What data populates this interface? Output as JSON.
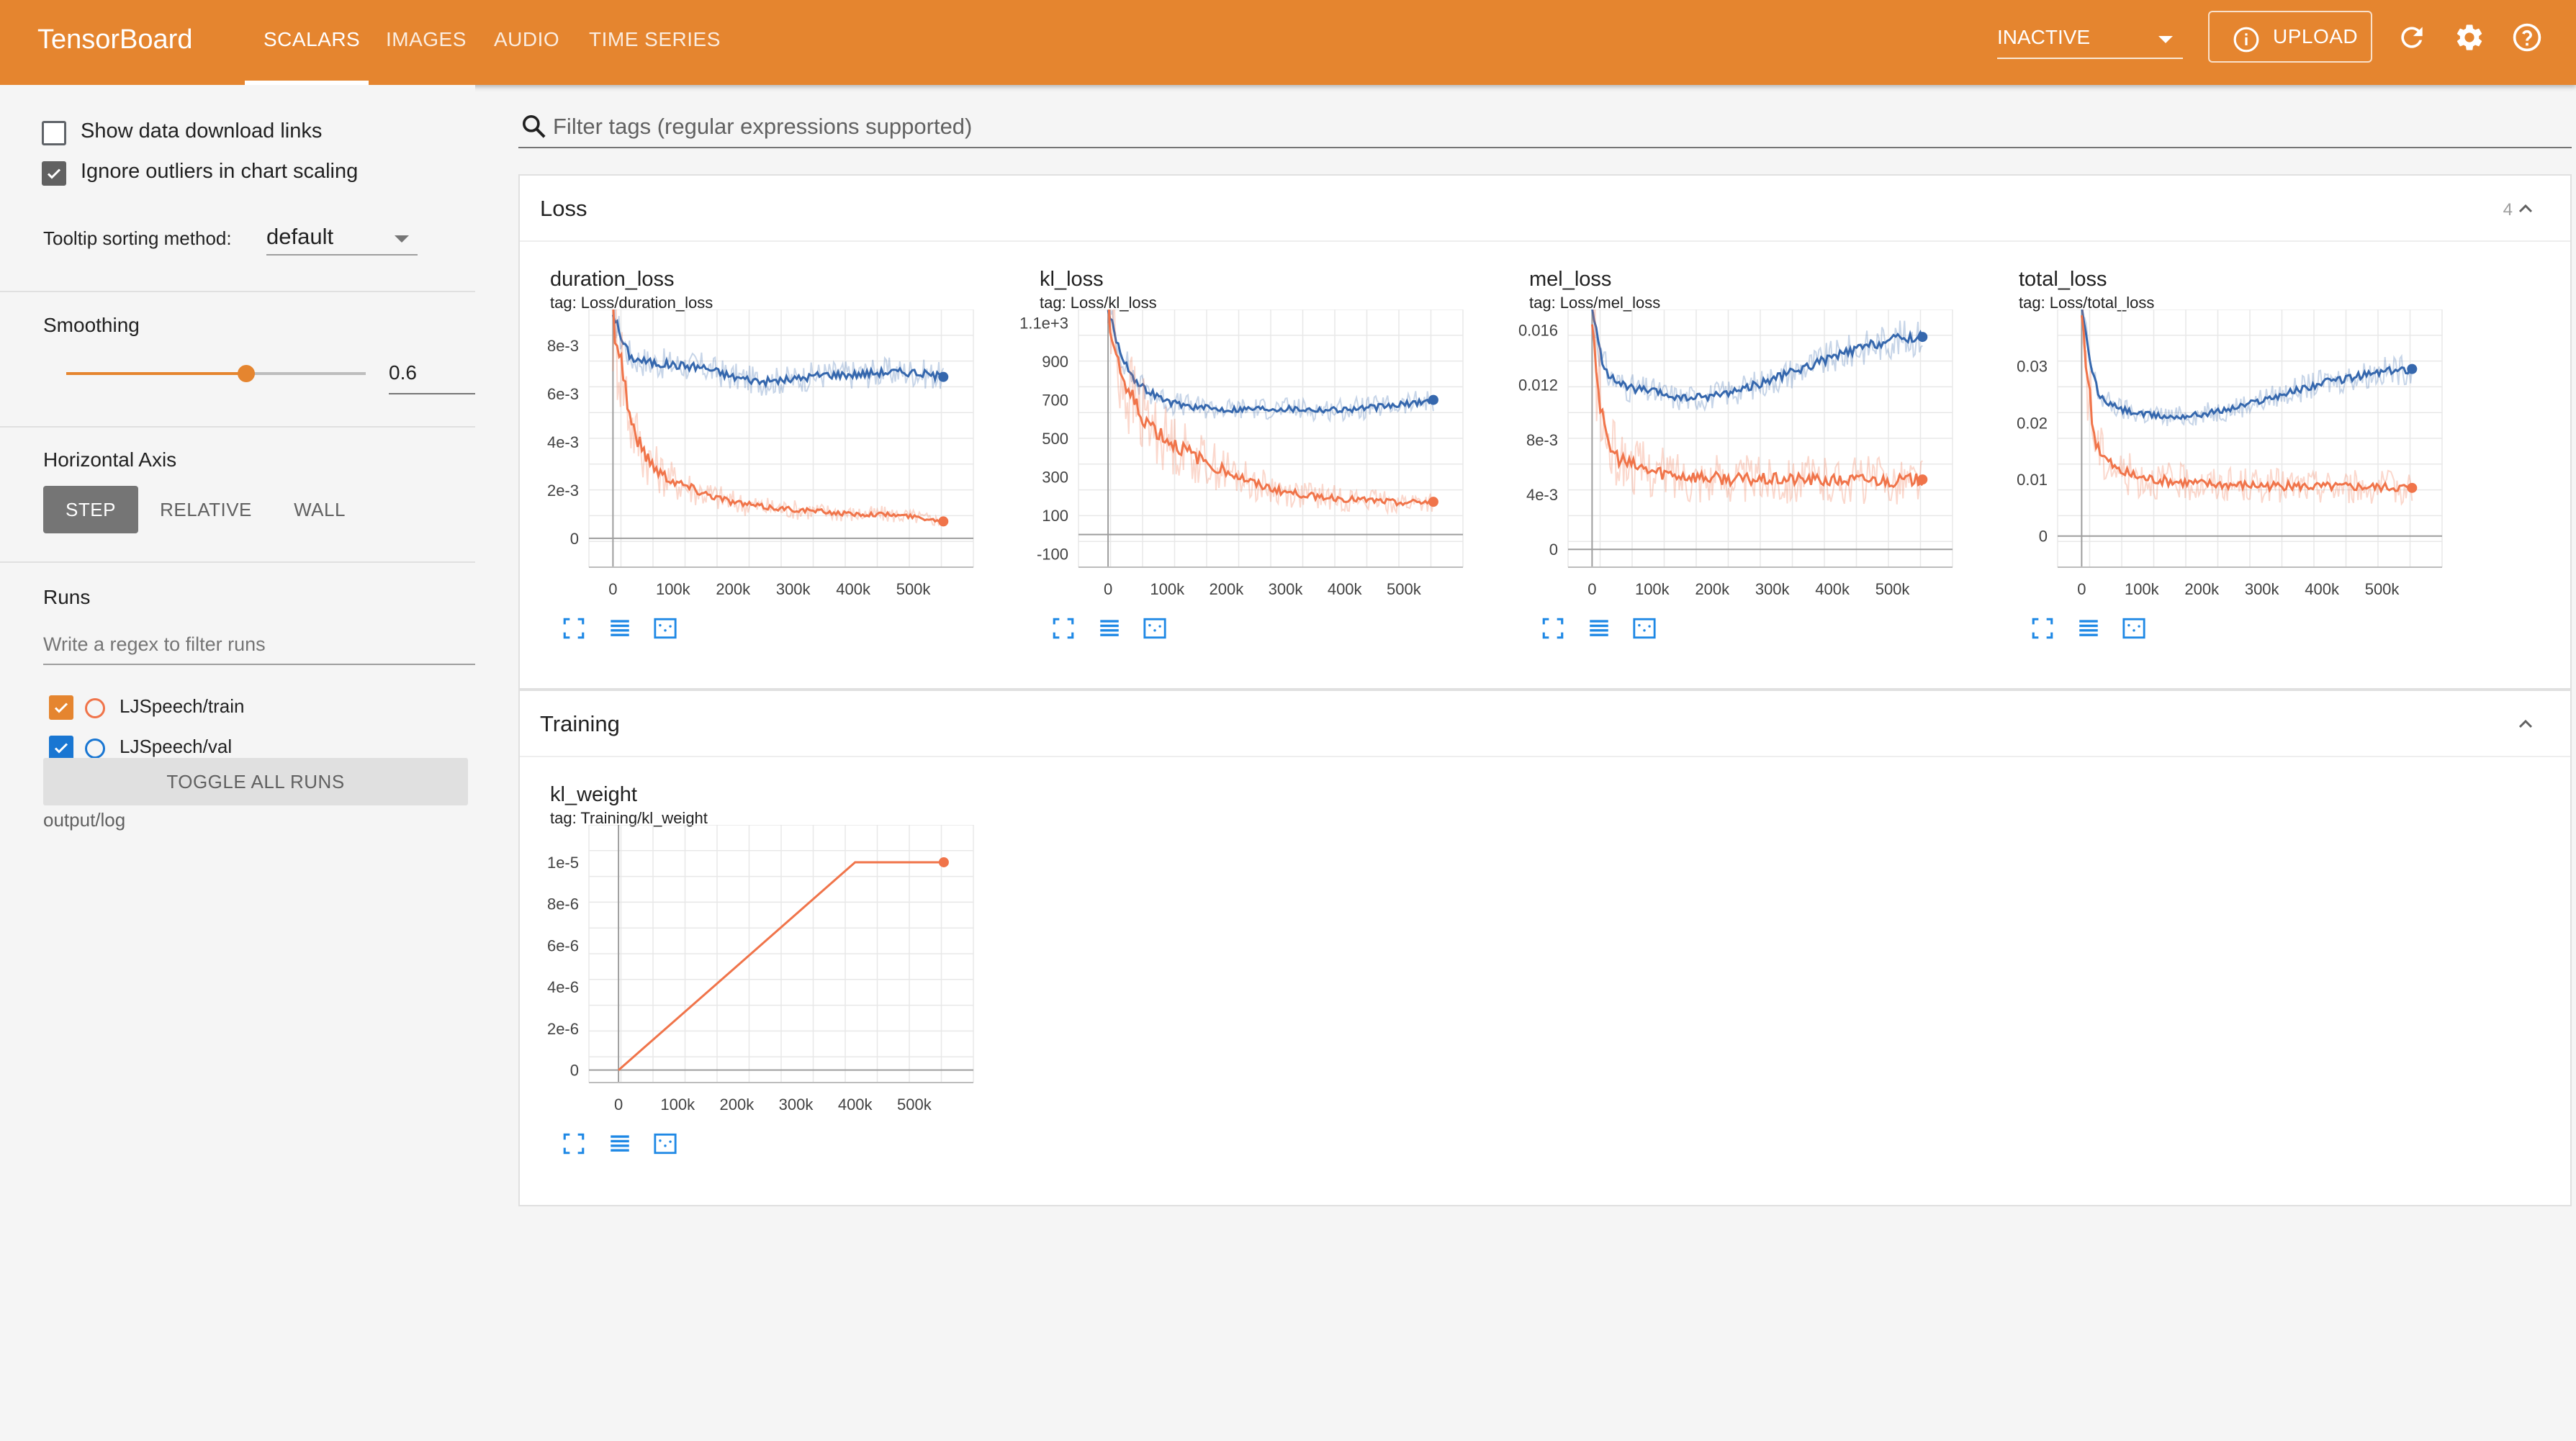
{
  "header": {
    "brand": "TensorBoard",
    "tabs": [
      {
        "label": "SCALARS",
        "active": true
      },
      {
        "label": "IMAGES",
        "active": false
      },
      {
        "label": "AUDIO",
        "active": false
      },
      {
        "label": "TIME SERIES",
        "active": false
      }
    ],
    "run_select": "INACTIVE",
    "upload_label": "UPLOAD",
    "colors": {
      "bar": "#e5852f"
    }
  },
  "sidebar": {
    "show_download": {
      "label": "Show data download links",
      "checked": false
    },
    "ignore_outliers": {
      "label": "Ignore outliers in chart scaling",
      "checked": true
    },
    "tooltip_sort": {
      "label": "Tooltip sorting method:",
      "value": "default"
    },
    "smoothing": {
      "label": "Smoothing",
      "value": "0.6",
      "fraction": 0.6
    },
    "horizontal_axis": {
      "label": "Horizontal Axis",
      "options": [
        "STEP",
        "RELATIVE",
        "WALL"
      ],
      "selected": "STEP"
    },
    "runs": {
      "label": "Runs",
      "filter_placeholder": "Write a regex to filter runs",
      "items": [
        {
          "name": "LJSpeech/train",
          "checked": true,
          "color": "#f0744a"
        },
        {
          "name": "LJSpeech/val",
          "checked": true,
          "color": "#1976d2"
        }
      ],
      "toggle_all": "TOGGLE ALL RUNS",
      "logdir": "output/log"
    }
  },
  "main": {
    "filter_placeholder": "Filter tags (regular expressions supported)",
    "groups": [
      {
        "title": "Loss",
        "count": "4"
      },
      {
        "title": "Training",
        "count": ""
      }
    ]
  },
  "chart_data": [
    {
      "type": "line",
      "title": "duration_loss",
      "tag": "tag: Loss/duration_loss",
      "xlim": [
        -40000,
        600000
      ],
      "ylim": [
        -0.0012,
        0.0095
      ],
      "x_ticks": [
        "0",
        "100k",
        "200k",
        "300k",
        "400k",
        "500k"
      ],
      "x_tick_values": [
        0,
        100000,
        200000,
        300000,
        400000,
        500000
      ],
      "y_ticks": [
        "0",
        "2e-3",
        "4e-3",
        "6e-3",
        "8e-3"
      ],
      "y_tick_values": [
        0,
        0.002,
        0.004,
        0.006,
        0.008
      ],
      "series": [
        {
          "name": "LJSpeech/val",
          "color": "#3567ad",
          "x": [
            0,
            15000,
            30000,
            60000,
            100000,
            150000,
            200000,
            250000,
            300000,
            350000,
            400000,
            450000,
            500000,
            550000
          ],
          "y": [
            0.0094,
            0.0082,
            0.0075,
            0.0073,
            0.0072,
            0.0071,
            0.0067,
            0.0065,
            0.0066,
            0.0068,
            0.0068,
            0.0069,
            0.0069,
            0.0067
          ]
        },
        {
          "name": "LJSpeech/train",
          "color": "#f0744a",
          "x": [
            0,
            15000,
            30000,
            50000,
            75000,
            100000,
            150000,
            200000,
            250000,
            300000,
            350000,
            400000,
            450000,
            500000,
            550000
          ],
          "y": [
            0.0094,
            0.0072,
            0.0048,
            0.0036,
            0.0028,
            0.0024,
            0.0019,
            0.0015,
            0.0013,
            0.0012,
            0.0011,
            0.001,
            0.001,
            0.0009,
            0.0007
          ]
        }
      ]
    },
    {
      "type": "line",
      "title": "kl_loss",
      "tag": "tag: Loss/kl_loss",
      "xlim": [
        -50000,
        600000
      ],
      "ylim": [
        -170,
        1170
      ],
      "x_ticks": [
        "0",
        "100k",
        "200k",
        "300k",
        "400k",
        "500k"
      ],
      "x_tick_values": [
        0,
        100000,
        200000,
        300000,
        400000,
        500000
      ],
      "y_ticks": [
        "-100",
        "100",
        "300",
        "500",
        "700",
        "900",
        "1.1e+3"
      ],
      "y_tick_values": [
        -100,
        100,
        300,
        500,
        700,
        900,
        1100
      ],
      "series": [
        {
          "name": "LJSpeech/val",
          "color": "#3567ad",
          "x": [
            0,
            20000,
            50000,
            100000,
            150000,
            200000,
            250000,
            300000,
            350000,
            400000,
            450000,
            500000,
            550000
          ],
          "y": [
            1170,
            950,
            780,
            690,
            660,
            650,
            655,
            655,
            650,
            650,
            660,
            675,
            700
          ]
        },
        {
          "name": "LJSpeech/train",
          "color": "#f0744a",
          "x": [
            0,
            15000,
            30000,
            50000,
            75000,
            100000,
            150000,
            200000,
            250000,
            300000,
            350000,
            400000,
            450000,
            500000,
            550000
          ],
          "y": [
            1170,
            930,
            760,
            650,
            560,
            490,
            400,
            330,
            260,
            220,
            200,
            185,
            175,
            165,
            170
          ]
        }
      ]
    },
    {
      "type": "line",
      "title": "mel_loss",
      "tag": "tag: Loss/mel_loss",
      "xlim": [
        -40000,
        600000
      ],
      "ylim": [
        -0.0013,
        0.0175
      ],
      "x_ticks": [
        "0",
        "100k",
        "200k",
        "300k",
        "400k",
        "500k"
      ],
      "x_tick_values": [
        0,
        100000,
        200000,
        300000,
        400000,
        500000
      ],
      "y_ticks": [
        "0",
        "4e-3",
        "8e-3",
        "0.012",
        "0.016"
      ],
      "y_tick_values": [
        0,
        0.004,
        0.008,
        0.012,
        0.016
      ],
      "series": [
        {
          "name": "LJSpeech/val",
          "color": "#3567ad",
          "x": [
            0,
            15000,
            30000,
            60000,
            100000,
            150000,
            200000,
            250000,
            300000,
            350000,
            400000,
            450000,
            500000,
            550000
          ],
          "y": [
            0.0175,
            0.014,
            0.0125,
            0.0118,
            0.0115,
            0.011,
            0.0112,
            0.0117,
            0.0124,
            0.0132,
            0.014,
            0.0147,
            0.0153,
            0.0155
          ]
        },
        {
          "name": "LJSpeech/train",
          "color": "#f0744a",
          "x": [
            0,
            10000,
            20000,
            35000,
            60000,
            100000,
            150000,
            200000,
            250000,
            300000,
            350000,
            400000,
            450000,
            500000,
            550000
          ],
          "y": [
            0.0175,
            0.012,
            0.0085,
            0.007,
            0.0062,
            0.0057,
            0.0054,
            0.0052,
            0.0051,
            0.0051,
            0.0051,
            0.005,
            0.0051,
            0.005,
            0.0051
          ]
        }
      ]
    },
    {
      "type": "line",
      "title": "total_loss",
      "tag": "tag: Loss/total_loss",
      "xlim": [
        -40000,
        600000
      ],
      "ylim": [
        -0.0055,
        0.04
      ],
      "x_ticks": [
        "0",
        "100k",
        "200k",
        "300k",
        "400k",
        "500k"
      ],
      "x_tick_values": [
        0,
        100000,
        200000,
        300000,
        400000,
        500000
      ],
      "y_ticks": [
        "0",
        "0.01",
        "0.02",
        "0.03"
      ],
      "y_tick_values": [
        0,
        0.01,
        0.02,
        0.03
      ],
      "series": [
        {
          "name": "LJSpeech/val",
          "color": "#3567ad",
          "x": [
            0,
            15000,
            30000,
            60000,
            100000,
            150000,
            200000,
            250000,
            300000,
            350000,
            400000,
            450000,
            500000,
            550000
          ],
          "y": [
            0.04,
            0.03,
            0.0245,
            0.0225,
            0.0215,
            0.021,
            0.0215,
            0.0225,
            0.024,
            0.0255,
            0.027,
            0.028,
            0.029,
            0.0295
          ]
        },
        {
          "name": "LJSpeech/train",
          "color": "#f0744a",
          "x": [
            0,
            10000,
            20000,
            35000,
            60000,
            100000,
            150000,
            200000,
            250000,
            300000,
            350000,
            400000,
            450000,
            500000,
            550000
          ],
          "y": [
            0.04,
            0.028,
            0.018,
            0.014,
            0.0115,
            0.0102,
            0.0096,
            0.0092,
            0.009,
            0.0089,
            0.0088,
            0.0087,
            0.0087,
            0.0086,
            0.0085
          ]
        }
      ]
    },
    {
      "type": "line",
      "title": "kl_weight",
      "tag": "tag: Training/kl_weight",
      "xlim": [
        -50000,
        600000
      ],
      "ylim": [
        -6e-07,
        1.18e-05
      ],
      "x_ticks": [
        "0",
        "100k",
        "200k",
        "300k",
        "400k",
        "500k"
      ],
      "x_tick_values": [
        0,
        100000,
        200000,
        300000,
        400000,
        500000
      ],
      "y_ticks": [
        "0",
        "2e-6",
        "4e-6",
        "6e-6",
        "8e-6",
        "1e-5"
      ],
      "y_tick_values": [
        0,
        2e-06,
        4e-06,
        6e-06,
        8e-06,
        1e-05
      ],
      "series": [
        {
          "name": "LJSpeech/train",
          "color": "#f0744a",
          "x": [
            0,
            400000,
            550000
          ],
          "y": [
            0,
            1e-05,
            1e-05
          ]
        }
      ]
    }
  ]
}
